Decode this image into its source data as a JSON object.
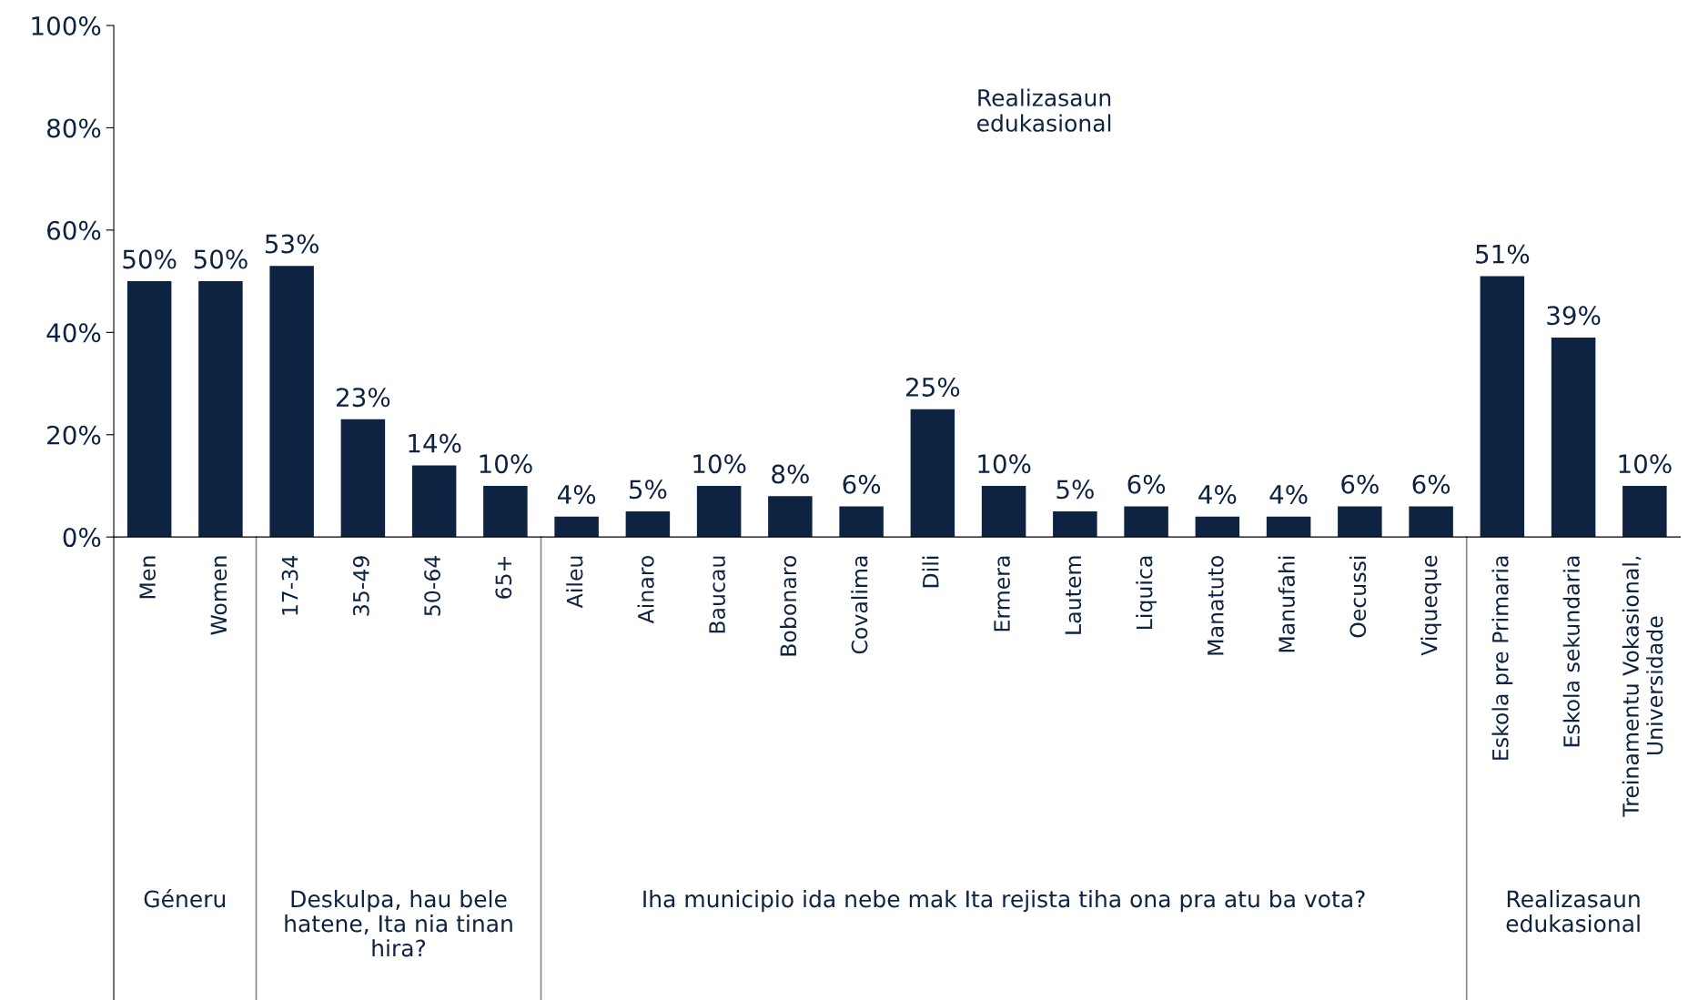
{
  "chart_data": {
    "type": "bar",
    "categories": [
      "Men",
      "Women",
      "17-34",
      "35-49",
      "50-64",
      "65+",
      "Aileu",
      "Ainaro",
      "Baucau",
      "Bobonaro",
      "Covalima",
      "Dili",
      "Ermera",
      "Lautem",
      "Liquica",
      "Manatuto",
      "Manufahi",
      "Oecussi",
      "Viqueque",
      "Eskola pre Primaria",
      "Eskola sekundaria",
      "Treinamentu Vokasional,\nUniversidade"
    ],
    "values": [
      50,
      50,
      53,
      23,
      14,
      10,
      4,
      5,
      10,
      8,
      6,
      25,
      10,
      5,
      6,
      4,
      4,
      6,
      6,
      51,
      39,
      10
    ],
    "color": "#0e2341",
    "ylim": [
      0,
      100
    ],
    "yticks": [
      {
        "value": 0,
        "label": "0%"
      },
      {
        "value": 20,
        "label": "20%"
      },
      {
        "value": 40,
        "label": "40%"
      },
      {
        "value": 60,
        "label": "60%"
      },
      {
        "value": 80,
        "label": "80%"
      },
      {
        "value": 100,
        "label": "100%"
      }
    ],
    "value_labels": [
      "50%",
      "50%",
      "53%",
      "23%",
      "14%",
      "10%",
      "4%",
      "5%",
      "10%",
      "8%",
      "6%",
      "25%",
      "10%",
      "5%",
      "6%",
      "4%",
      "4%",
      "6%",
      "6%",
      "51%",
      "39%",
      "10%"
    ],
    "annotations": [
      "Realizasaun\nedukasional",
      "Géneru",
      "Deskulpa, hau bele\nhatene, Ita nia tinan\nhira?",
      "Iha municipio ida nebe mak Ita rejista tiha ona pra atu ba vota?",
      "Realizasaun\nedukasional"
    ],
    "grid": false,
    "legend": false
  }
}
